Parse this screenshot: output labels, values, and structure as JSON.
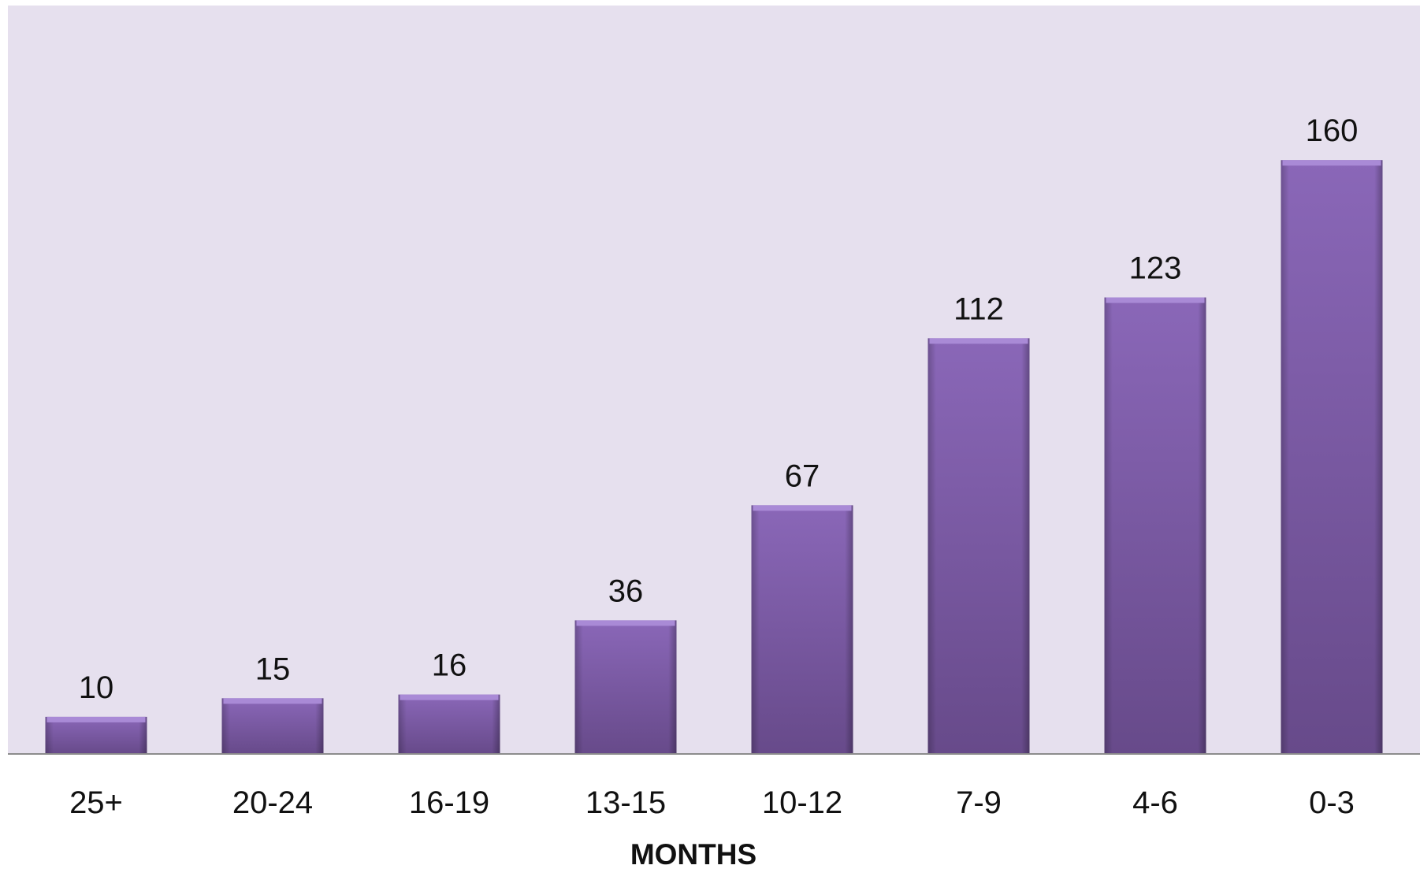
{
  "chart_data": {
    "type": "bar",
    "categories": [
      "25+",
      "20-24",
      "16-19",
      "13-15",
      "10-12",
      "7-9",
      "4-6",
      "0-3"
    ],
    "values": [
      10,
      15,
      16,
      36,
      67,
      112,
      123,
      160
    ],
    "xlabel": "MONTHS",
    "ylim": [
      0,
      180
    ],
    "grid": false,
    "legend": "none",
    "colors": {
      "plot_background": "#e6e0ee",
      "bar_light": "#8a67b8",
      "bar_dark": "#674a8a",
      "bar_top": "#a98ad6",
      "axis": "#8c8c8c",
      "text": "#111111"
    }
  }
}
